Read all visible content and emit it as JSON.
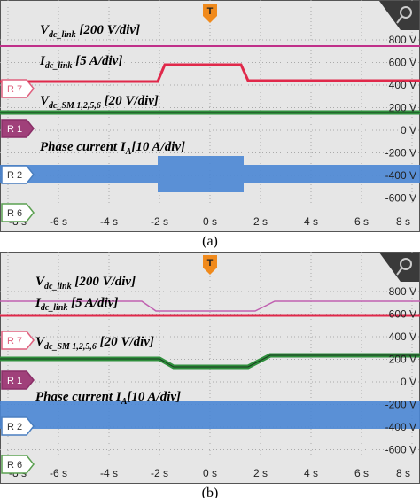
{
  "panels": [
    {
      "caption": "(a)",
      "trigger": "T",
      "channels": [
        "R 7",
        "R 1",
        "R 2",
        "R 6"
      ],
      "volt_ticks": [
        "800 V",
        "600 V",
        "400 V",
        "200 V",
        "0 V",
        "-200 V",
        "-400 V",
        "-600 V"
      ],
      "time_ticks": [
        "-8 s",
        "-6 s",
        "-4 s",
        "-2 s",
        "0 s",
        "2 s",
        "4 s",
        "6 s",
        "8 s"
      ],
      "labels": [
        {
          "symbol": "V",
          "subscript": "dc_link",
          "scale": " [200 V/div]"
        },
        {
          "symbol": "I",
          "subscript": "dc_link",
          "scale": " [5 A/div]"
        },
        {
          "symbol": "V",
          "subscript": "dc_SM 1,2,5,6",
          "scale": " [20 V/div]"
        },
        {
          "symbol": "Phase current I",
          "subscript": "A",
          "scale": "[10 A/div]"
        }
      ]
    },
    {
      "caption": "(b)",
      "trigger": "T",
      "channels": [
        "R 7",
        "R 1",
        "R 2",
        "R 6"
      ],
      "volt_ticks": [
        "800 V",
        "600 V",
        "400 V",
        "200 V",
        "0 V",
        "-200 V",
        "-400 V",
        "-600 V"
      ],
      "time_ticks": [
        "-8 s",
        "-6 s",
        "-4 s",
        "-2 s",
        "0 s",
        "2 s",
        "4 s",
        "6 s",
        "8 s"
      ],
      "labels": [
        {
          "symbol": "V",
          "subscript": "dc_link",
          "scale": " [200 V/div]"
        },
        {
          "symbol": "I",
          "subscript": "dc_link",
          "scale": " [5 A/div]"
        },
        {
          "symbol": "V",
          "subscript": "dc_SM 1,2,5,6",
          "scale": " [20 V/div]"
        },
        {
          "symbol": "Phase current I",
          "subscript": "A",
          "scale": "[10 A/div]"
        }
      ]
    }
  ]
}
